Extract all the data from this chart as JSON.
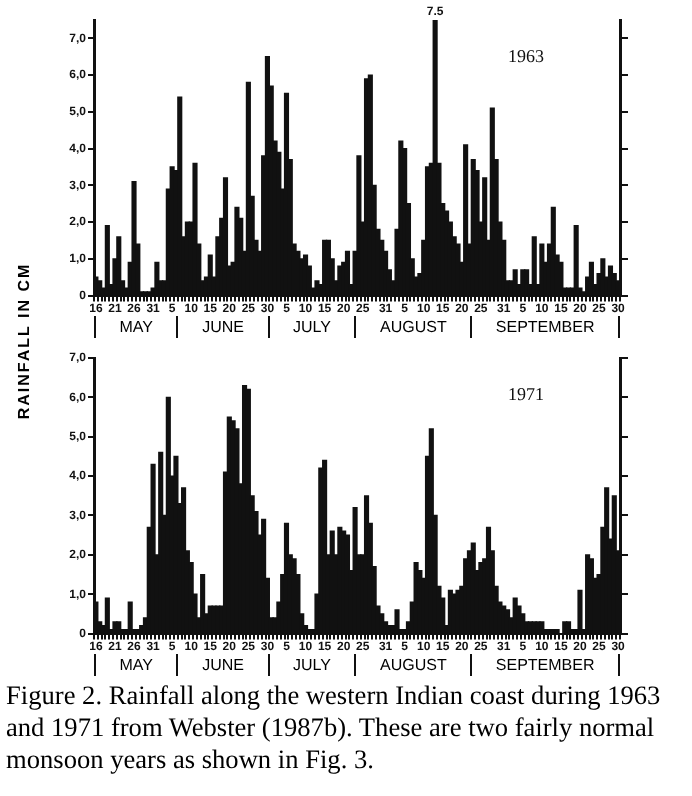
{
  "chart_data": [
    {
      "type": "bar",
      "title": "1963",
      "ylabel": "RAINFALL IN CM",
      "color": "#111111",
      "grid": false,
      "categories": [
        "16",
        null,
        null,
        null,
        null,
        "21",
        null,
        null,
        null,
        null,
        "26",
        null,
        null,
        null,
        null,
        "31",
        null,
        null,
        null,
        null,
        "5",
        null,
        null,
        null,
        null,
        "10",
        null,
        null,
        null,
        null,
        "15",
        null,
        null,
        null,
        null,
        "20",
        null,
        null,
        null,
        null,
        "25",
        null,
        null,
        null,
        null,
        "30",
        null,
        null,
        null,
        null,
        "5",
        null,
        null,
        null,
        null,
        "10",
        null,
        null,
        null,
        null,
        "15",
        null,
        null,
        null,
        null,
        "20",
        null,
        null,
        null,
        null,
        "25",
        null,
        null,
        null,
        null,
        null,
        "31",
        null,
        null,
        null,
        null,
        "5",
        null,
        null,
        null,
        null,
        "10",
        null,
        null,
        null,
        null,
        "15",
        null,
        null,
        null,
        null,
        "20",
        null,
        null,
        null,
        null,
        "25",
        null,
        null,
        null,
        null,
        null,
        "31",
        null,
        null,
        null,
        null,
        "5",
        null,
        null,
        null,
        null,
        "10",
        null,
        null,
        null,
        null,
        "15",
        null,
        null,
        null,
        null,
        "20",
        null,
        null,
        null,
        null,
        "25",
        null,
        null,
        null,
        null,
        "30"
      ],
      "values": [
        0.5,
        0.4,
        0.2,
        1.9,
        0.3,
        1.0,
        1.6,
        0.4,
        0.2,
        0.9,
        3.1,
        1.4,
        0.1,
        0.1,
        0.1,
        0.2,
        0.9,
        0.4,
        0.4,
        2.9,
        3.5,
        3.4,
        5.4,
        1.6,
        2.0,
        2.0,
        3.6,
        1.4,
        0.4,
        0.5,
        1.1,
        0.5,
        1.6,
        2.1,
        3.2,
        0.8,
        0.9,
        2.4,
        2.1,
        1.2,
        5.8,
        2.7,
        1.5,
        1.2,
        3.8,
        6.5,
        5.7,
        4.2,
        3.9,
        2.9,
        5.5,
        3.7,
        1.4,
        1.2,
        1.0,
        1.1,
        0.8,
        0.2,
        0.4,
        0.3,
        1.5,
        1.5,
        1.0,
        0.4,
        0.8,
        0.9,
        1.2,
        0.3,
        1.2,
        3.8,
        2.0,
        5.9,
        6.0,
        3.0,
        1.8,
        1.5,
        1.2,
        0.7,
        0.4,
        1.8,
        4.2,
        4.0,
        2.5,
        1.0,
        0.5,
        0.6,
        1.5,
        3.5,
        3.6,
        7.5,
        3.6,
        2.5,
        2.3,
        2.0,
        1.6,
        1.4,
        0.9,
        4.1,
        1.4,
        3.7,
        3.4,
        2.0,
        3.2,
        1.5,
        5.1,
        3.7,
        2.0,
        1.5,
        0.4,
        0.4,
        0.7,
        0.3,
        0.7,
        0.7,
        0.3,
        1.6,
        0.3,
        1.4,
        0.9,
        1.4,
        2.4,
        1.1,
        0.9,
        0.2,
        0.2,
        0.2,
        1.9,
        0.2,
        0.1,
        0.5,
        0.9,
        0.3,
        0.6,
        1.0,
        0.5,
        0.8,
        0.6,
        0.4
      ],
      "value_labels": [
        null,
        null,
        null,
        null,
        null,
        null,
        null,
        null,
        null,
        null,
        null,
        null,
        null,
        null,
        null,
        null,
        null,
        null,
        null,
        null,
        null,
        null,
        null,
        null,
        null,
        null,
        null,
        null,
        null,
        null,
        null,
        null,
        null,
        null,
        null,
        null,
        null,
        null,
        null,
        null,
        null,
        null,
        null,
        null,
        null,
        null,
        null,
        null,
        null,
        null,
        null,
        null,
        null,
        null,
        null,
        null,
        null,
        null,
        null,
        null,
        null,
        null,
        null,
        null,
        null,
        null,
        null,
        null,
        null,
        null,
        null,
        null,
        null,
        null,
        null,
        null,
        null,
        null,
        null,
        null,
        null,
        null,
        null,
        null,
        null,
        null,
        null,
        null,
        null,
        "7.5",
        null,
        null,
        null,
        null,
        null,
        null,
        null,
        null,
        null,
        null,
        null,
        null,
        null,
        null,
        null,
        null,
        null,
        null,
        null,
        null,
        null,
        null,
        null,
        null,
        null,
        null,
        null,
        null,
        null,
        null,
        null,
        null,
        null,
        null,
        null,
        null,
        null,
        null,
        null,
        null,
        null,
        null,
        null,
        null,
        null,
        null,
        null,
        null
      ],
      "ylim": [
        0,
        7.5
      ],
      "yticks": [
        0,
        {
          "value": 1,
          "label": "1,0"
        },
        {
          "value": 2,
          "label": "2,0"
        },
        {
          "value": 3,
          "label": "3,0"
        },
        {
          "value": 4,
          "label": "4,0"
        },
        {
          "value": 5,
          "label": "5,0"
        },
        {
          "value": 6,
          "label": "6,0"
        },
        {
          "value": 7,
          "label": "7,0"
        }
      ],
      "annotations": [
        "MAY",
        "JUNE",
        "JULY",
        "AUGUST",
        "SEPTEMBER"
      ]
    },
    {
      "type": "bar",
      "title": "1971",
      "color": "#111111",
      "grid": false,
      "categories": [
        "16",
        null,
        null,
        null,
        null,
        "21",
        null,
        null,
        null,
        null,
        "26",
        null,
        null,
        null,
        null,
        "31",
        null,
        null,
        null,
        null,
        "5",
        null,
        null,
        null,
        null,
        "10",
        null,
        null,
        null,
        null,
        "15",
        null,
        null,
        null,
        null,
        "20",
        null,
        null,
        null,
        null,
        "25",
        null,
        null,
        null,
        null,
        "30",
        null,
        null,
        null,
        null,
        "5",
        null,
        null,
        null,
        null,
        "10",
        null,
        null,
        null,
        null,
        "15",
        null,
        null,
        null,
        null,
        "20",
        null,
        null,
        null,
        null,
        "25",
        null,
        null,
        null,
        null,
        null,
        "31",
        null,
        null,
        null,
        null,
        "5",
        null,
        null,
        null,
        null,
        "10",
        null,
        null,
        null,
        null,
        "15",
        null,
        null,
        null,
        null,
        "20",
        null,
        null,
        null,
        null,
        "25",
        null,
        null,
        null,
        null,
        null,
        "31",
        null,
        null,
        null,
        null,
        "5",
        null,
        null,
        null,
        null,
        "10",
        null,
        null,
        null,
        null,
        "15",
        null,
        null,
        null,
        null,
        "20",
        null,
        null,
        null,
        null,
        "25",
        null,
        null,
        null,
        null,
        "30"
      ],
      "values": [
        0.8,
        0.3,
        0.2,
        0.9,
        0.1,
        0.3,
        0.3,
        0.1,
        0.1,
        0.8,
        0.1,
        0.1,
        0.2,
        0.4,
        2.7,
        4.3,
        2.0,
        4.6,
        3.0,
        6.0,
        4.0,
        4.5,
        3.3,
        3.7,
        2.1,
        1.8,
        1.0,
        0.4,
        1.5,
        0.5,
        0.7,
        0.7,
        0.7,
        0.7,
        4.1,
        5.5,
        5.4,
        5.2,
        3.8,
        6.3,
        6.2,
        3.5,
        3.1,
        2.5,
        2.9,
        1.4,
        0.4,
        0.4,
        0.8,
        1.5,
        2.8,
        2.0,
        1.9,
        1.5,
        0.5,
        0.2,
        0.1,
        0.1,
        1.0,
        4.2,
        4.4,
        2.0,
        2.6,
        2.0,
        2.7,
        2.6,
        2.5,
        1.6,
        3.2,
        2.0,
        2.0,
        3.5,
        2.8,
        1.7,
        0.7,
        0.5,
        0.3,
        0.2,
        0.2,
        0.6,
        0.1,
        0.1,
        0.3,
        0.8,
        1.8,
        1.6,
        1.4,
        4.5,
        5.2,
        3.0,
        1.2,
        0.9,
        0.2,
        1.1,
        1.0,
        1.1,
        1.2,
        1.9,
        2.1,
        2.3,
        1.6,
        1.8,
        1.9,
        2.7,
        2.1,
        1.2,
        0.8,
        0.7,
        0.6,
        0.4,
        0.9,
        0.7,
        0.5,
        0.3,
        0.3,
        0.3,
        0.3,
        0.3,
        0.1,
        0.1,
        0.1,
        0.1,
        0.0,
        0.3,
        0.3,
        0.1,
        0.1,
        1.1,
        0.1,
        2.0,
        1.9,
        1.4,
        1.5,
        2.7,
        3.7,
        2.4,
        3.5,
        2.1
      ],
      "ylim": [
        0,
        7
      ],
      "yticks": [
        0,
        {
          "value": 1,
          "label": "1,0"
        },
        {
          "value": 2,
          "label": "2,0"
        },
        {
          "value": 3,
          "label": "3,0"
        },
        {
          "value": 4,
          "label": "4,0"
        },
        {
          "value": 5,
          "label": "5,0"
        },
        {
          "value": 6,
          "label": "6,0"
        },
        {
          "value": 7,
          "label": "7,0"
        }
      ],
      "annotations": [
        "MAY",
        "JUNE",
        "JULY",
        "AUGUST",
        "SEPTEMBER",
        "Figure 2.  Rainfall along the western Indian coast during 1963 and 1971 from Webster (1987b).  These are two fairly normal monsoon years as shown in Fig. 3."
      ]
    }
  ]
}
